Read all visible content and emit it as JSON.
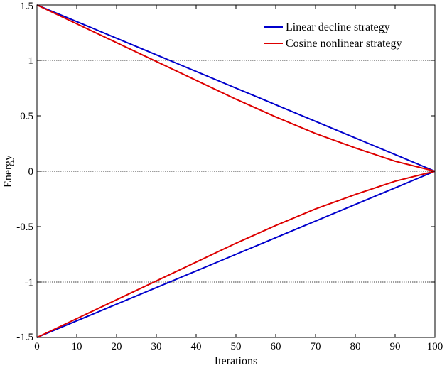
{
  "chart_data": {
    "type": "line",
    "title": "",
    "xlabel": "Iterations",
    "ylabel": "Energy",
    "xlim": [
      0,
      100
    ],
    "ylim": [
      -1.5,
      1.5
    ],
    "x_ticks": [
      0,
      10,
      20,
      30,
      40,
      50,
      60,
      70,
      80,
      90,
      100
    ],
    "y_ticks": [
      -1.5,
      -1,
      -0.5,
      0,
      0.5,
      1,
      1.5
    ],
    "x_tick_labels": [
      "0",
      "10",
      "20",
      "30",
      "40",
      "50",
      "60",
      "70",
      "80",
      "90",
      "100"
    ],
    "y_tick_labels": [
      "-1.5",
      "-1",
      "-0.5",
      "0",
      "0.5",
      "1",
      "1.5"
    ],
    "reference_lines_y": [
      -1,
      0,
      1
    ],
    "legend_position": "top-right",
    "x": [
      0,
      10,
      20,
      30,
      40,
      50,
      60,
      70,
      80,
      90,
      100
    ],
    "series": [
      {
        "name": "Linear decline strategy",
        "color": "#0000cc",
        "values": [
          1.5,
          1.35,
          1.2,
          1.05,
          0.9,
          0.75,
          0.6,
          0.45,
          0.3,
          0.15,
          0.0
        ]
      },
      {
        "name": "Linear decline strategy",
        "color": "#0000cc",
        "values": [
          -1.5,
          -1.35,
          -1.2,
          -1.05,
          -0.9,
          -0.75,
          -0.6,
          -0.45,
          -0.3,
          -0.15,
          0.0
        ]
      },
      {
        "name": "Cosine nonlinear strategy",
        "color": "#dd0000",
        "values": [
          1.5,
          1.33,
          1.16,
          0.99,
          0.82,
          0.65,
          0.49,
          0.34,
          0.21,
          0.09,
          0.0
        ]
      },
      {
        "name": "Cosine nonlinear strategy",
        "color": "#dd0000",
        "values": [
          -1.5,
          -1.33,
          -1.16,
          -0.99,
          -0.82,
          -0.65,
          -0.49,
          -0.34,
          -0.21,
          -0.09,
          0.0
        ]
      }
    ],
    "legend": [
      {
        "label": "Linear decline strategy",
        "color": "#0000cc"
      },
      {
        "label": "Cosine nonlinear strategy",
        "color": "#dd0000"
      }
    ]
  }
}
